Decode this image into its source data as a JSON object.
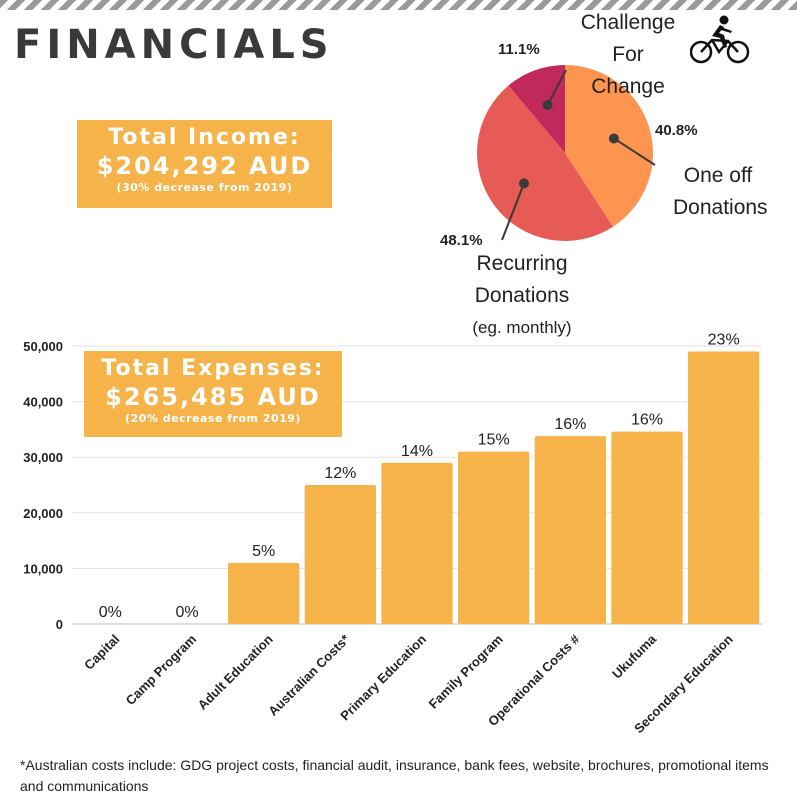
{
  "page": {
    "title": "FINANCIALS",
    "footnote": "*Australian costs include: GDG project costs, financial audit, insurance, bank fees, website, brochures, promotional items and communications"
  },
  "income": {
    "label": "Total Income:",
    "value": "$204,292 AUD",
    "note": "(30% decrease from 2019)"
  },
  "expenses": {
    "label": "Total Expenses:",
    "value": "$265,485 AUD",
    "note": "(20% decrease from 2019)"
  },
  "icons": {
    "bike": "cyclist-icon"
  },
  "colors": {
    "bar": "#f6b349",
    "box": "#f6b349",
    "pie_one_off": "#fd9450",
    "pie_recurring": "#e65b55",
    "pie_challenge": "#c0295a"
  },
  "chart_data": [
    {
      "type": "pie",
      "slices": [
        {
          "label_lines": [
            "One off",
            "Donations"
          ],
          "value": 40.8,
          "label": "40.8%",
          "color": "#fd9450"
        },
        {
          "label_lines": [
            "Recurring",
            "Donations",
            "(eg. monthly)"
          ],
          "value": 48.1,
          "label": "48.1%",
          "color": "#e65b55"
        },
        {
          "label_lines": [
            "Challenge",
            "For Change"
          ],
          "value": 11.1,
          "label": "11.1%",
          "color": "#c0295a"
        }
      ]
    },
    {
      "type": "bar",
      "categories": [
        "Capital",
        "Camp Program",
        "Adult Education",
        "Australian Costs*",
        "Primary Education",
        "Family Program",
        "Operational Costs #",
        "Ukufuma",
        "Secondary Education"
      ],
      "values": [
        0,
        0,
        11000,
        25000,
        29000,
        31000,
        33800,
        34600,
        49000
      ],
      "labels": [
        "0%",
        "0%",
        "5%",
        "12%",
        "14%",
        "15%",
        "16%",
        "16%",
        "23%"
      ],
      "ylim": [
        0,
        50000
      ],
      "yticks": [
        0,
        10000,
        20000,
        30000,
        40000,
        50000
      ],
      "ytick_labels": [
        "0",
        "10,000",
        "20,000",
        "30,000",
        "40,000",
        "50,000"
      ],
      "grid": true,
      "color": "#f6b349"
    }
  ]
}
